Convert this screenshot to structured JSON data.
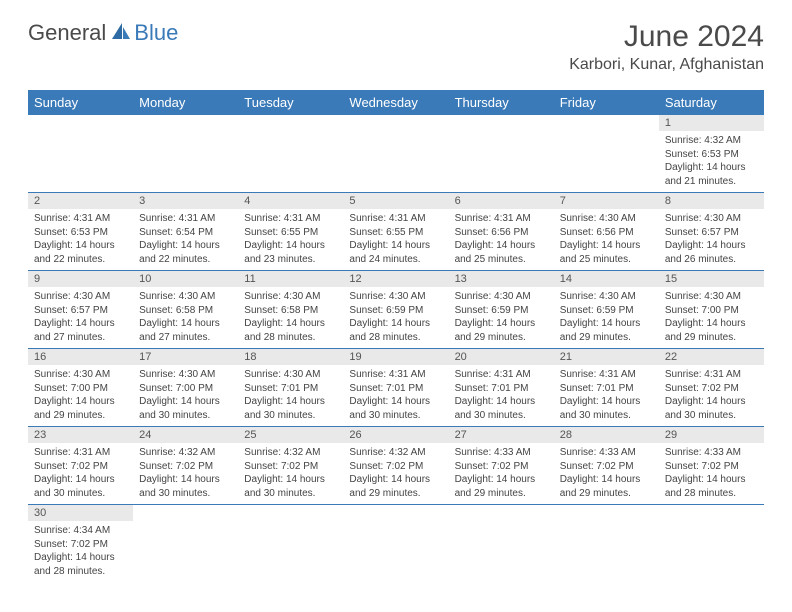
{
  "logo": {
    "general": "General",
    "blue": "Blue"
  },
  "title": "June 2024",
  "location": "Karbori, Kunar, Afghanistan",
  "colors": {
    "header_bg": "#3a7ab8",
    "header_text": "#ffffff",
    "daynum_bg": "#e9e9e9",
    "border": "#3a7ab8",
    "title_color": "#4a4a4a"
  },
  "dayHeaders": [
    "Sunday",
    "Monday",
    "Tuesday",
    "Wednesday",
    "Thursday",
    "Friday",
    "Saturday"
  ],
  "weeks": [
    [
      {
        "n": "",
        "sr": "",
        "ss": "",
        "dl": ""
      },
      {
        "n": "",
        "sr": "",
        "ss": "",
        "dl": ""
      },
      {
        "n": "",
        "sr": "",
        "ss": "",
        "dl": ""
      },
      {
        "n": "",
        "sr": "",
        "ss": "",
        "dl": ""
      },
      {
        "n": "",
        "sr": "",
        "ss": "",
        "dl": ""
      },
      {
        "n": "",
        "sr": "",
        "ss": "",
        "dl": ""
      },
      {
        "n": "1",
        "sr": "Sunrise: 4:32 AM",
        "ss": "Sunset: 6:53 PM",
        "dl": "Daylight: 14 hours and 21 minutes."
      }
    ],
    [
      {
        "n": "2",
        "sr": "Sunrise: 4:31 AM",
        "ss": "Sunset: 6:53 PM",
        "dl": "Daylight: 14 hours and 22 minutes."
      },
      {
        "n": "3",
        "sr": "Sunrise: 4:31 AM",
        "ss": "Sunset: 6:54 PM",
        "dl": "Daylight: 14 hours and 22 minutes."
      },
      {
        "n": "4",
        "sr": "Sunrise: 4:31 AM",
        "ss": "Sunset: 6:55 PM",
        "dl": "Daylight: 14 hours and 23 minutes."
      },
      {
        "n": "5",
        "sr": "Sunrise: 4:31 AM",
        "ss": "Sunset: 6:55 PM",
        "dl": "Daylight: 14 hours and 24 minutes."
      },
      {
        "n": "6",
        "sr": "Sunrise: 4:31 AM",
        "ss": "Sunset: 6:56 PM",
        "dl": "Daylight: 14 hours and 25 minutes."
      },
      {
        "n": "7",
        "sr": "Sunrise: 4:30 AM",
        "ss": "Sunset: 6:56 PM",
        "dl": "Daylight: 14 hours and 25 minutes."
      },
      {
        "n": "8",
        "sr": "Sunrise: 4:30 AM",
        "ss": "Sunset: 6:57 PM",
        "dl": "Daylight: 14 hours and 26 minutes."
      }
    ],
    [
      {
        "n": "9",
        "sr": "Sunrise: 4:30 AM",
        "ss": "Sunset: 6:57 PM",
        "dl": "Daylight: 14 hours and 27 minutes."
      },
      {
        "n": "10",
        "sr": "Sunrise: 4:30 AM",
        "ss": "Sunset: 6:58 PM",
        "dl": "Daylight: 14 hours and 27 minutes."
      },
      {
        "n": "11",
        "sr": "Sunrise: 4:30 AM",
        "ss": "Sunset: 6:58 PM",
        "dl": "Daylight: 14 hours and 28 minutes."
      },
      {
        "n": "12",
        "sr": "Sunrise: 4:30 AM",
        "ss": "Sunset: 6:59 PM",
        "dl": "Daylight: 14 hours and 28 minutes."
      },
      {
        "n": "13",
        "sr": "Sunrise: 4:30 AM",
        "ss": "Sunset: 6:59 PM",
        "dl": "Daylight: 14 hours and 29 minutes."
      },
      {
        "n": "14",
        "sr": "Sunrise: 4:30 AM",
        "ss": "Sunset: 6:59 PM",
        "dl": "Daylight: 14 hours and 29 minutes."
      },
      {
        "n": "15",
        "sr": "Sunrise: 4:30 AM",
        "ss": "Sunset: 7:00 PM",
        "dl": "Daylight: 14 hours and 29 minutes."
      }
    ],
    [
      {
        "n": "16",
        "sr": "Sunrise: 4:30 AM",
        "ss": "Sunset: 7:00 PM",
        "dl": "Daylight: 14 hours and 29 minutes."
      },
      {
        "n": "17",
        "sr": "Sunrise: 4:30 AM",
        "ss": "Sunset: 7:00 PM",
        "dl": "Daylight: 14 hours and 30 minutes."
      },
      {
        "n": "18",
        "sr": "Sunrise: 4:30 AM",
        "ss": "Sunset: 7:01 PM",
        "dl": "Daylight: 14 hours and 30 minutes."
      },
      {
        "n": "19",
        "sr": "Sunrise: 4:31 AM",
        "ss": "Sunset: 7:01 PM",
        "dl": "Daylight: 14 hours and 30 minutes."
      },
      {
        "n": "20",
        "sr": "Sunrise: 4:31 AM",
        "ss": "Sunset: 7:01 PM",
        "dl": "Daylight: 14 hours and 30 minutes."
      },
      {
        "n": "21",
        "sr": "Sunrise: 4:31 AM",
        "ss": "Sunset: 7:01 PM",
        "dl": "Daylight: 14 hours and 30 minutes."
      },
      {
        "n": "22",
        "sr": "Sunrise: 4:31 AM",
        "ss": "Sunset: 7:02 PM",
        "dl": "Daylight: 14 hours and 30 minutes."
      }
    ],
    [
      {
        "n": "23",
        "sr": "Sunrise: 4:31 AM",
        "ss": "Sunset: 7:02 PM",
        "dl": "Daylight: 14 hours and 30 minutes."
      },
      {
        "n": "24",
        "sr": "Sunrise: 4:32 AM",
        "ss": "Sunset: 7:02 PM",
        "dl": "Daylight: 14 hours and 30 minutes."
      },
      {
        "n": "25",
        "sr": "Sunrise: 4:32 AM",
        "ss": "Sunset: 7:02 PM",
        "dl": "Daylight: 14 hours and 30 minutes."
      },
      {
        "n": "26",
        "sr": "Sunrise: 4:32 AM",
        "ss": "Sunset: 7:02 PM",
        "dl": "Daylight: 14 hours and 29 minutes."
      },
      {
        "n": "27",
        "sr": "Sunrise: 4:33 AM",
        "ss": "Sunset: 7:02 PM",
        "dl": "Daylight: 14 hours and 29 minutes."
      },
      {
        "n": "28",
        "sr": "Sunrise: 4:33 AM",
        "ss": "Sunset: 7:02 PM",
        "dl": "Daylight: 14 hours and 29 minutes."
      },
      {
        "n": "29",
        "sr": "Sunrise: 4:33 AM",
        "ss": "Sunset: 7:02 PM",
        "dl": "Daylight: 14 hours and 28 minutes."
      }
    ],
    [
      {
        "n": "30",
        "sr": "Sunrise: 4:34 AM",
        "ss": "Sunset: 7:02 PM",
        "dl": "Daylight: 14 hours and 28 minutes."
      },
      {
        "n": "",
        "sr": "",
        "ss": "",
        "dl": ""
      },
      {
        "n": "",
        "sr": "",
        "ss": "",
        "dl": ""
      },
      {
        "n": "",
        "sr": "",
        "ss": "",
        "dl": ""
      },
      {
        "n": "",
        "sr": "",
        "ss": "",
        "dl": ""
      },
      {
        "n": "",
        "sr": "",
        "ss": "",
        "dl": ""
      },
      {
        "n": "",
        "sr": "",
        "ss": "",
        "dl": ""
      }
    ]
  ]
}
